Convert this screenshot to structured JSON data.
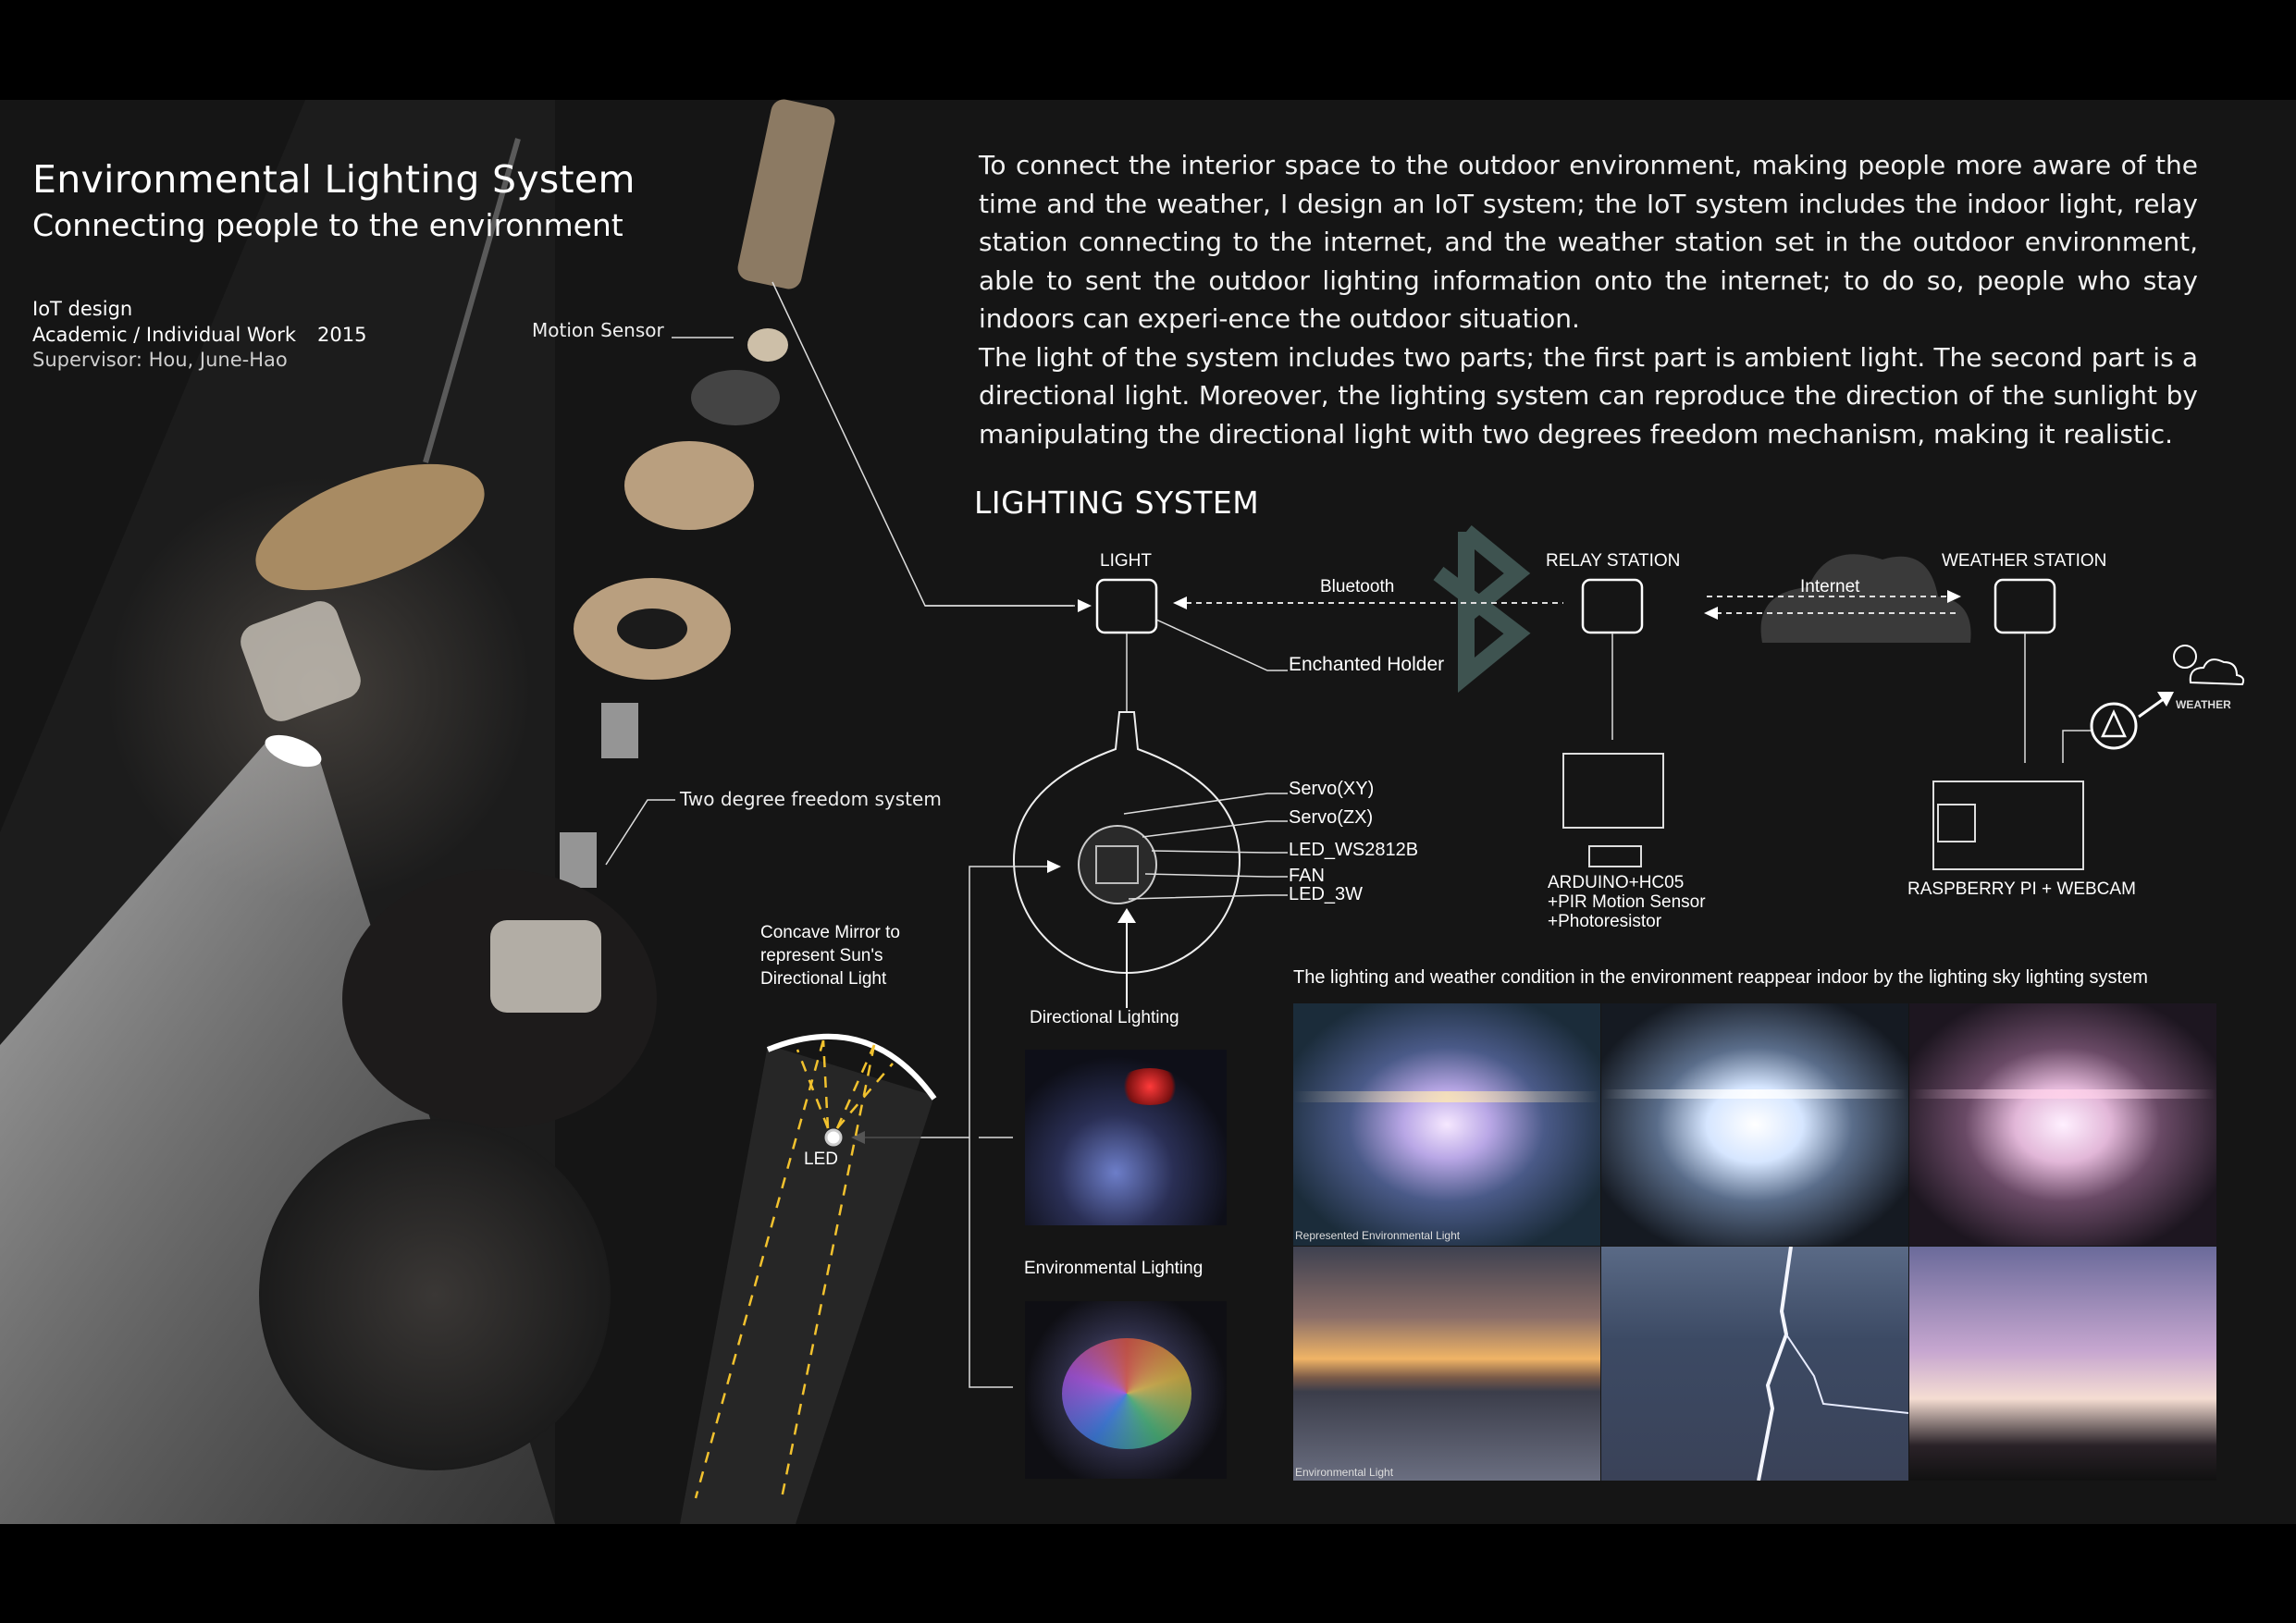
{
  "header": {
    "title": "Environmental Lighting System",
    "subtitle": "Connecting people to the environment",
    "category": "IoT design",
    "work_type": "Academic / Individual Work",
    "year": "2015",
    "supervisor": "Supervisor: Hou, June-Hao"
  },
  "exploded_view": {
    "motion_sensor": "Motion Sensor",
    "two_degree": "Two degree freedom system"
  },
  "description": {
    "paragraph1": "To connect the interior space to the outdoor environment, making people more aware of the time and the weather, I design an IoT system; the IoT system includes the indoor light, relay station connecting to the internet, and the weather station set in the outdoor environment, able to sent the outdoor lighting information onto the internet; to do so, people who stay indoors can experi-ence the outdoor situation.",
    "paragraph2": "The light of the system includes two parts; the first part is ambient light. The second part is a directional light. Moreover, the lighting system can reproduce the direction of the sunlight by manipulating the directional light with two degrees freedom mechanism, making it realistic."
  },
  "diagram": {
    "section_title": "LIGHTING SYSTEM",
    "light": "LIGHT",
    "relay": "RELAY STATION",
    "weather_station": "WEATHER STATION",
    "bluetooth": "Bluetooth",
    "internet": "Internet",
    "holder": "Enchanted Holder",
    "servo_xy": "Servo(XY)",
    "servo_zx": "Servo(ZX)",
    "led_strip": "LED_WS2812B",
    "fan": "FAN",
    "led_3w": "LED_3W",
    "arduino_1": "ARDUINO+HC05",
    "arduino_2": "+PIR Motion Sensor",
    "arduino_3": "+Photoresistor",
    "raspberry": "RASPBERRY PI + WEBCAM",
    "weather": "WEATHER",
    "mirror_1": "Concave Mirror to",
    "mirror_2": "represent Sun's",
    "mirror_3": "Directional Light",
    "led": "LED",
    "directional": "Directional Lighting",
    "environmental": "Environmental Lighting"
  },
  "gallery": {
    "caption": "The lighting and weather condition in the environment reappear indoor by the lighting  sky lighting system",
    "represented": "Represented Environmental Light",
    "environmental": "Environmental Light"
  },
  "colors": {
    "panel": "#151515",
    "accent_yellow": "#f2c22e",
    "line": "#d8d8d8"
  }
}
